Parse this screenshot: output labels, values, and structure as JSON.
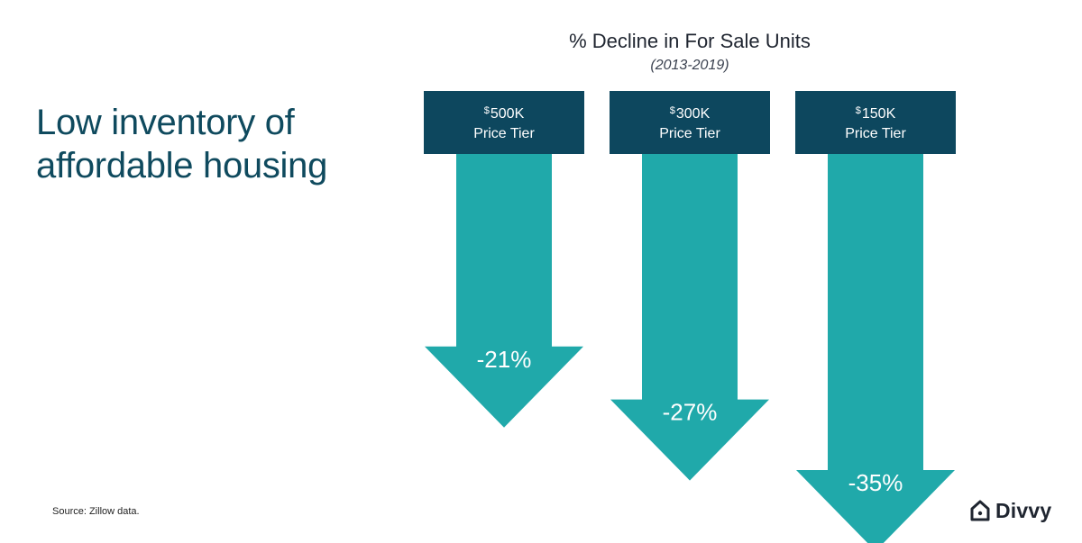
{
  "slide": {
    "title": "Low inventory of affordable housing",
    "source": "Source: Zillow data.",
    "logo_text": "Divvy"
  },
  "colors": {
    "title": "#0f4a5e",
    "tier_box": "#0d475e",
    "arrow": "#20a9aa",
    "label": "#ffffff"
  },
  "chart_data": {
    "type": "bar",
    "orientation": "downward-arrows",
    "title": "% Decline in For Sale Units",
    "subtitle": "(2013-2019)",
    "categories": [
      {
        "currency": "$",
        "amount": "500K",
        "tier_label": "Price Tier"
      },
      {
        "currency": "$",
        "amount": "300K",
        "tier_label": "Price Tier"
      },
      {
        "currency": "$",
        "amount": "150K",
        "tier_label": "Price Tier"
      }
    ],
    "values": [
      -21,
      -27,
      -35
    ],
    "value_labels": [
      "-21%",
      "-27%",
      "-35%"
    ],
    "unit": "%"
  }
}
